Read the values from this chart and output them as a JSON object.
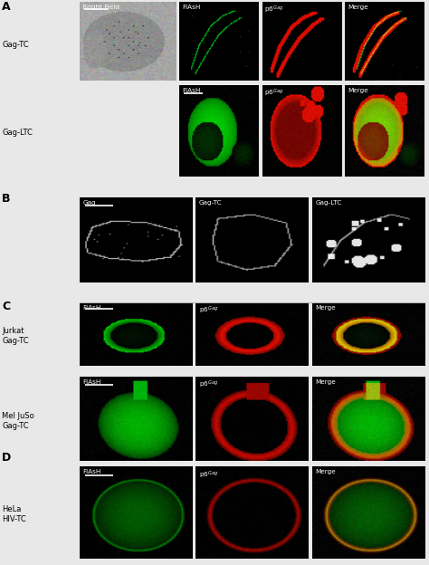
{
  "fig_width": 4.74,
  "fig_height": 6.24,
  "dpi": 100,
  "outer_bg": "#e8e8e8",
  "panel_A_label": "A",
  "panel_B_label": "B",
  "panel_C_label": "C",
  "panel_D_label": "D",
  "row_label_GagTC": "Gag-TC",
  "row_label_GagLTC": "Gag-LTC",
  "row_label_Jurkat": "Jurkat\nGag-TC",
  "row_label_MelJuSo": "Mel JuSo\nGag-TC",
  "row_label_HeLa": "HeLa\nHIV-TC",
  "col_A_top": [
    "Bright Field",
    "FlAsH",
    "p6$^{Gag}$",
    "Merge"
  ],
  "col_A_bot": [
    "FlAsH",
    "p6$^{Gag}$",
    "Merge"
  ],
  "col_B": [
    "Gag",
    "Gag-TC",
    "Gag-LTC"
  ],
  "col_C": [
    "FlAsH",
    "p6$^{Gag}$",
    "Merge"
  ],
  "col_D": [
    "FlAsH",
    "p6$^{Gag}$",
    "Merge"
  ],
  "white": "#ffffff",
  "black": "#000000"
}
